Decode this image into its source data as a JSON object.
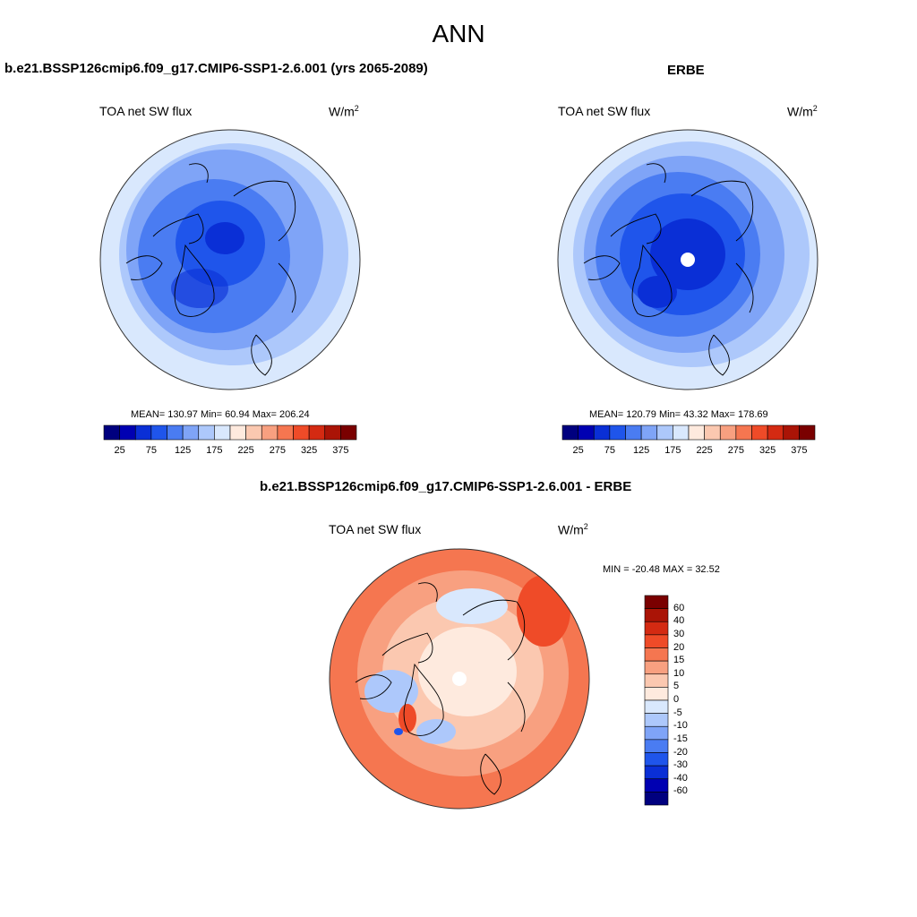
{
  "page": {
    "title": "ANN"
  },
  "colors": {
    "sequential": [
      "#00007f",
      "#0000b2",
      "#0a2fd6",
      "#1f55eb",
      "#4a7cf2",
      "#7fa4f7",
      "#adc8fb",
      "#d9e8fd",
      "#feeade",
      "#fbc8b0",
      "#f8a080",
      "#f57650",
      "#ef4b28",
      "#d42a12",
      "#aa1406",
      "#7a0000"
    ],
    "diverging": [
      "#00007f",
      "#0000b2",
      "#0a2fd6",
      "#1f55eb",
      "#4a7cf2",
      "#7fa4f7",
      "#adc8fb",
      "#d9e8fd",
      "#feeade",
      "#fbc8b0",
      "#f8a080",
      "#f57650",
      "#ef4b28",
      "#d42a12",
      "#aa1406",
      "#7a0000"
    ]
  },
  "panels": [
    {
      "title": "b.e21.BSSP126cmip6.f09_g17.CMIP6-SSP1-2.6.001 (yrs 2065-2089)",
      "variable": "TOA net SW flux",
      "units": "W/m",
      "units_exp": "2",
      "stats": "MEAN= 130.97  Min=  60.94  Max= 206.24",
      "colorbar_ticks": [
        "25",
        "75",
        "125",
        "175",
        "225",
        "275",
        "325",
        "375"
      ],
      "map_mean_level": 3
    },
    {
      "title": "ERBE",
      "variable": "TOA net SW flux",
      "units": "W/m",
      "units_exp": "2",
      "stats": "MEAN= 120.79  Min=  43.32  Max= 178.69",
      "colorbar_ticks": [
        "25",
        "75",
        "125",
        "175",
        "225",
        "275",
        "325",
        "375"
      ],
      "map_mean_level": 3
    },
    {
      "title": "b.e21.BSSP126cmip6.f09_g17.CMIP6-SSP1-2.6.001 - ERBE",
      "variable": "TOA net SW flux",
      "units": "W/m",
      "units_exp": "2",
      "stats": "MIN = -20.48 MAX =  32.52",
      "colorbar_ticks": [
        "60",
        "40",
        "30",
        "20",
        "15",
        "10",
        "5",
        "0",
        "-5",
        "-10",
        "-15",
        "-20",
        "-30",
        "-40",
        "-60"
      ]
    }
  ]
}
